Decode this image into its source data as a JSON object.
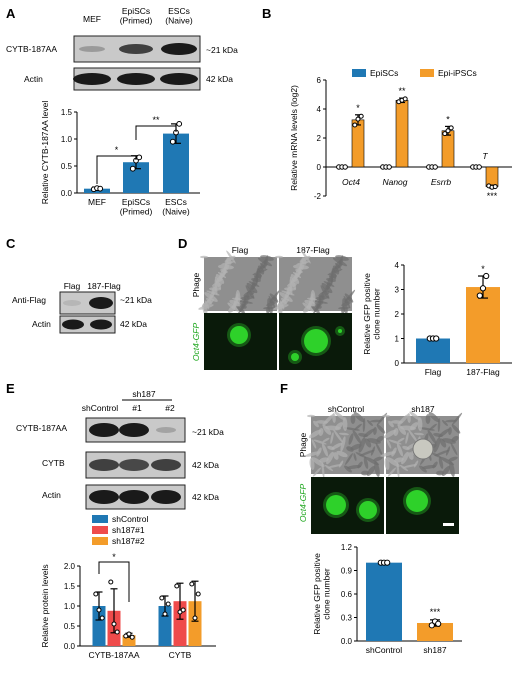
{
  "colors": {
    "blue": "#1f78b4",
    "orange": "#f39c2a",
    "red": "#ef4b4b",
    "gfp": "#2ed12a",
    "gfp_bg": "#0a1a0a"
  },
  "panel_letters": [
    "A",
    "B",
    "C",
    "D",
    "E",
    "F"
  ],
  "panelA": {
    "lanes": [
      "MEF",
      "EpiSCs\n(Primed)",
      "ESCs\n(Naive)"
    ],
    "rows": [
      "CYTB-187AA",
      "Actin"
    ],
    "sizes": [
      "~21 kDa",
      "42 kDa"
    ],
    "chart_data": {
      "type": "bar",
      "categories": [
        "MEF",
        "EpiSCs\n(Primed)",
        "ESCs\n(Naive)"
      ],
      "values": [
        0.08,
        0.57,
        1.1
      ],
      "errors": [
        0.03,
        0.12,
        0.18
      ],
      "points": [
        [
          0.07,
          0.09,
          0.08
        ],
        [
          0.45,
          0.6,
          0.66
        ],
        [
          0.95,
          1.12,
          1.28
        ]
      ],
      "ylabel": "Relative CYTB-187AA level",
      "ylim": [
        0,
        1.5
      ],
      "yticks": [
        "0.0",
        "0.5",
        "1.0",
        "1.5"
      ],
      "significance": [
        {
          "from": 0,
          "to": 1,
          "label": "*"
        },
        {
          "from": 1,
          "to": 2,
          "label": "**"
        }
      ]
    }
  },
  "panelB": {
    "chart_data": {
      "type": "bar",
      "categories": [
        "Oct4",
        "Nanog",
        "Esrrb",
        "T"
      ],
      "series": [
        {
          "name": "EpiSCs",
          "values": [
            0,
            0,
            0,
            0
          ]
        },
        {
          "name": "Epi-iPSCs",
          "values": [
            3.25,
            4.6,
            2.5,
            -1.35
          ],
          "errors": [
            0.35,
            0.15,
            0.3,
            0.1
          ],
          "points": [
            [
              2.9,
              3.3,
              3.5
            ],
            [
              4.5,
              4.6,
              4.7
            ],
            [
              2.3,
              2.5,
              2.7
            ],
            [
              -1.3,
              -1.4,
              -1.35
            ]
          ],
          "significance": [
            "*",
            "**",
            "*",
            "***"
          ]
        }
      ],
      "ylabel": "Relative mRNA levels (log2)",
      "ylim": [
        -2,
        6
      ],
      "yticks": [
        "-2",
        "0",
        "2",
        "4",
        "6"
      ],
      "legend": "top"
    }
  },
  "panelC": {
    "lanes": [
      "Flag",
      "187-Flag"
    ],
    "rows": [
      "Anti-Flag",
      "Actin"
    ],
    "sizes": [
      "~21 kDa",
      "42 kDa"
    ]
  },
  "panelD": {
    "col_labels": [
      "Flag",
      "187-Flag"
    ],
    "row_labels": [
      "Phage",
      "Oct4-GFP"
    ],
    "chart_data": {
      "type": "bar",
      "categories": [
        "Flag",
        "187-Flag"
      ],
      "values": [
        1.0,
        3.1
      ],
      "errors": [
        0.02,
        0.45
      ],
      "points": [
        [
          1.0,
          1.0,
          1.0
        ],
        [
          2.75,
          3.05,
          3.55
        ]
      ],
      "ylabel": "Relative GFP positive\nclone number",
      "ylim": [
        0,
        4
      ],
      "yticks": [
        "0",
        "1",
        "2",
        "3",
        "4"
      ],
      "significance": [
        "",
        "*"
      ]
    }
  },
  "panelE": {
    "lanes": [
      "shControl",
      "#1",
      "#2"
    ],
    "group_label": "sh187",
    "rows": [
      "CYTB-187AA",
      "CYTB",
      "Actin"
    ],
    "sizes": [
      "~21 kDa",
      "42 kDa",
      "42 kDa"
    ],
    "chart_data": {
      "type": "bar",
      "categories": [
        "CYTB-187AA",
        "CYTB"
      ],
      "series": [
        {
          "name": "shControl",
          "values": [
            1.0,
            1.0
          ],
          "errors": [
            0.35,
            0.25
          ],
          "points": [
            [
              1.3,
              0.9,
              0.7
            ],
            [
              1.2,
              0.8,
              1.05
            ]
          ]
        },
        {
          "name": "sh187#1",
          "values": [
            0.88,
            1.12
          ],
          "errors": [
            0.55,
            0.45
          ],
          "points": [
            [
              1.6,
              0.55,
              0.35
            ],
            [
              1.5,
              0.85,
              0.9
            ]
          ]
        },
        {
          "name": "sh187#2",
          "values": [
            0.27,
            1.12
          ],
          "errors": [
            0.05,
            0.5
          ],
          "points": [
            [
              0.25,
              0.3,
              0.22
            ],
            [
              1.55,
              0.7,
              1.3
            ]
          ]
        }
      ],
      "ylabel": "Relative protein levels",
      "ylim": [
        0,
        2.0
      ],
      "yticks": [
        "0.0",
        "0.5",
        "1.0",
        "1.5",
        "2.0"
      ],
      "significance": [
        {
          "from": "shControl",
          "to": "sh187#2",
          "group": "CYTB-187AA",
          "label": "*"
        }
      ]
    }
  },
  "panelF": {
    "col_labels": [
      "shControl",
      "sh187"
    ],
    "row_labels": [
      "Phage",
      "Oct4-GFP"
    ],
    "chart_data": {
      "type": "bar",
      "categories": [
        "shControl",
        "sh187"
      ],
      "values": [
        1.0,
        0.23
      ],
      "errors": [
        0.01,
        0.04
      ],
      "points": [
        [
          1.0,
          1.0,
          1.0
        ],
        [
          0.2,
          0.25,
          0.22
        ]
      ],
      "ylabel": "Relative GFP positive\nclone number",
      "ylim": [
        0,
        1.2
      ],
      "yticks": [
        "0.0",
        "0.3",
        "0.6",
        "0.9",
        "1.2"
      ],
      "significance": [
        "",
        "***"
      ]
    }
  }
}
